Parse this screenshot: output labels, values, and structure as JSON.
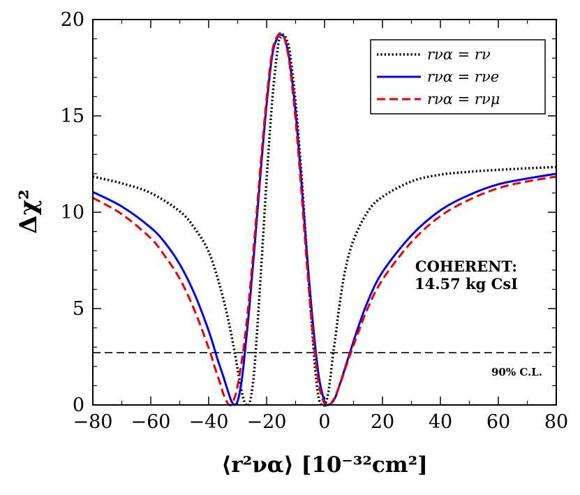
{
  "chart_data": {
    "type": "line",
    "title": "",
    "xlabel": "⟨r²να⟩ [10⁻³²cm²]",
    "ylabel": "Δχ²",
    "xlim": [
      -80,
      80
    ],
    "ylim": [
      0,
      20
    ],
    "xticks": [
      -80,
      -60,
      -40,
      -20,
      0,
      20,
      40,
      60,
      80
    ],
    "xtick_labels": [
      "−80",
      "−60",
      "−40",
      "−20",
      "0",
      "20",
      "40",
      "60",
      "80"
    ],
    "yticks": [
      0,
      5,
      10,
      15,
      20
    ],
    "ytick_labels": [
      "0",
      "5",
      "10",
      "15",
      "20"
    ],
    "grid": false,
    "legend_position": "top-right",
    "series": [
      {
        "name": "rνα = rν",
        "color": "#000000",
        "style": "dotted",
        "x": [
          -80,
          -70,
          -60,
          -50,
          -45,
          -40,
          -36,
          -33,
          -31,
          -30,
          -29,
          -28,
          -27,
          -26,
          -25,
          -24,
          -22,
          -20,
          -18,
          -16,
          -15,
          -14,
          -13,
          -12,
          -10,
          -8,
          -6,
          -4,
          -3,
          -2,
          -1,
          0,
          1,
          2,
          3,
          4,
          5,
          7,
          10,
          15,
          20,
          30,
          40,
          50,
          60,
          70,
          80
        ],
        "y": [
          11.85,
          11.5,
          11.0,
          10.05,
          9.2,
          7.95,
          6.1,
          4.25,
          2.7,
          1.85,
          1.0,
          0.3,
          0.0,
          0.05,
          0.8,
          2.3,
          6.8,
          11.7,
          15.9,
          18.7,
          19.1,
          19.2,
          18.9,
          18.3,
          15.7,
          12.0,
          7.6,
          3.3,
          1.5,
          0.35,
          0.0,
          0.0,
          0.4,
          1.4,
          2.7,
          3.8,
          5.0,
          6.9,
          8.55,
          10.05,
          10.8,
          11.6,
          11.95,
          12.1,
          12.2,
          12.28,
          12.35
        ]
      },
      {
        "name": "rνα = rνe",
        "color": "#0000ee",
        "style": "solid",
        "x": [
          -80,
          -70,
          -60,
          -55,
          -50,
          -45,
          -40,
          -37,
          -35,
          -33,
          -32,
          -31,
          -30,
          -29,
          -28,
          -26,
          -24,
          -22,
          -20,
          -18,
          -16,
          -15,
          -14,
          -13,
          -12,
          -10,
          -8,
          -6,
          -4,
          -2,
          0,
          1,
          2,
          3,
          4,
          5,
          6,
          8,
          10,
          12,
          15,
          20,
          30,
          40,
          50,
          60,
          70,
          80
        ],
        "y": [
          11.05,
          10.3,
          9.2,
          8.4,
          7.3,
          5.8,
          3.85,
          2.4,
          1.5,
          0.55,
          0.15,
          0.0,
          0.2,
          0.9,
          2.0,
          5.0,
          8.5,
          12.2,
          15.6,
          18.2,
          19.15,
          19.2,
          19.1,
          18.6,
          17.8,
          15.2,
          11.6,
          7.7,
          4.2,
          1.5,
          0.15,
          0.0,
          0.05,
          0.2,
          0.5,
          0.95,
          1.4,
          2.35,
          3.3,
          4.2,
          5.4,
          6.9,
          8.8,
          10.1,
          10.9,
          11.45,
          11.75,
          12.0
        ]
      },
      {
        "name": "rνα = rνμ",
        "color": "#ee0000",
        "style": "dashed",
        "x": [
          -80,
          -70,
          -60,
          -55,
          -50,
          -45,
          -40,
          -38,
          -36,
          -35,
          -34,
          -33,
          -32,
          -31,
          -30,
          -28,
          -26,
          -24,
          -22,
          -20,
          -18,
          -16,
          -15,
          -14,
          -13,
          -12,
          -10,
          -8,
          -6,
          -4,
          -2,
          0,
          1,
          2,
          3,
          4,
          5,
          6,
          8,
          10,
          12,
          15,
          20,
          30,
          40,
          50,
          60,
          70,
          80
        ],
        "y": [
          10.75,
          9.9,
          8.65,
          7.7,
          6.55,
          4.95,
          2.95,
          2.0,
          1.1,
          0.6,
          0.25,
          0.0,
          0.05,
          0.4,
          1.0,
          2.9,
          5.6,
          9.0,
          12.6,
          15.9,
          18.4,
          19.2,
          19.25,
          19.1,
          18.5,
          17.6,
          14.8,
          11.1,
          7.1,
          3.6,
          1.1,
          0.05,
          0.0,
          0.05,
          0.25,
          0.55,
          0.95,
          1.35,
          2.25,
          3.1,
          3.9,
          5.05,
          6.5,
          8.45,
          9.8,
          10.65,
          11.25,
          11.6,
          11.85
        ]
      }
    ],
    "reference_lines": [
      {
        "axis": "y",
        "value": 2.71,
        "style": "dashed",
        "color": "#000000",
        "label": "90% C.L."
      }
    ],
    "annotations": [
      "COHERENT:",
      "14.57 kg CsI"
    ]
  }
}
